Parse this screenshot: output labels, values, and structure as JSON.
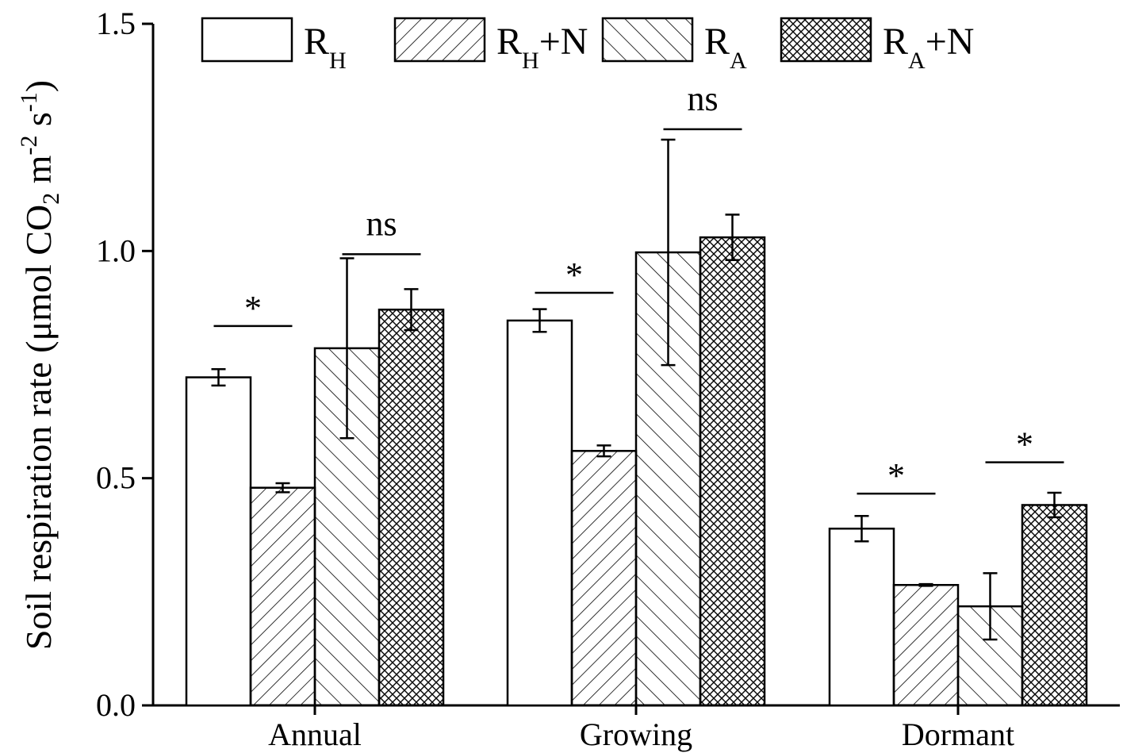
{
  "chart_data": {
    "type": "bar",
    "ylabel": "Soil respiration rate (μmol CO2 m-2 s-1)",
    "ylabel_parts": {
      "pre": "Soil respiration rate (μmol CO",
      "co2_sub": "2",
      "m": " m",
      "m_exp": "-2",
      "s": " s",
      "s_exp": "-1",
      "close": ")"
    },
    "ylim": [
      0,
      1.5
    ],
    "yticks": [
      0.0,
      0.5,
      1.0,
      1.5
    ],
    "ytick_labels": [
      "0.0",
      "0.5",
      "1.0",
      "1.5"
    ],
    "categories": [
      "Annual",
      "Growing",
      "Dormant"
    ],
    "series": [
      {
        "name": "RH",
        "base": "R",
        "sub": "H",
        "suffix": "",
        "pattern": "none",
        "values": [
          0.722,
          0.847,
          0.389
        ],
        "errors": [
          0.018,
          0.025,
          0.028
        ]
      },
      {
        "name": "RH+N",
        "base": "R",
        "sub": "H",
        "suffix": "+N",
        "pattern": "forward",
        "values": [
          0.479,
          0.56,
          0.265
        ],
        "errors": [
          0.01,
          0.012,
          0.002
        ]
      },
      {
        "name": "RA",
        "base": "R",
        "sub": "A",
        "suffix": "",
        "pattern": "backward",
        "values": [
          0.786,
          0.997,
          0.218
        ],
        "errors": [
          0.198,
          0.248,
          0.073
        ]
      },
      {
        "name": "RA+N",
        "base": "R",
        "sub": "A",
        "suffix": "+N",
        "pattern": "cross",
        "values": [
          0.871,
          1.03,
          0.441
        ],
        "errors": [
          0.045,
          0.05,
          0.027
        ]
      }
    ],
    "annotations": [
      {
        "text": "*",
        "category": 0,
        "pair": [
          0,
          1
        ],
        "y": 0.835
      },
      {
        "text": "ns",
        "category": 0,
        "pair": [
          2,
          3
        ],
        "y": 0.993
      },
      {
        "text": "*",
        "category": 1,
        "pair": [
          0,
          1
        ],
        "y": 0.908
      },
      {
        "text": "ns",
        "category": 1,
        "pair": [
          2,
          3
        ],
        "y": 1.268
      },
      {
        "text": "*",
        "category": 2,
        "pair": [
          0,
          1
        ],
        "y": 0.466
      },
      {
        "text": "*",
        "category": 2,
        "pair": [
          2,
          3
        ],
        "y": 0.535
      }
    ],
    "legend_position": "top",
    "grid": false
  }
}
